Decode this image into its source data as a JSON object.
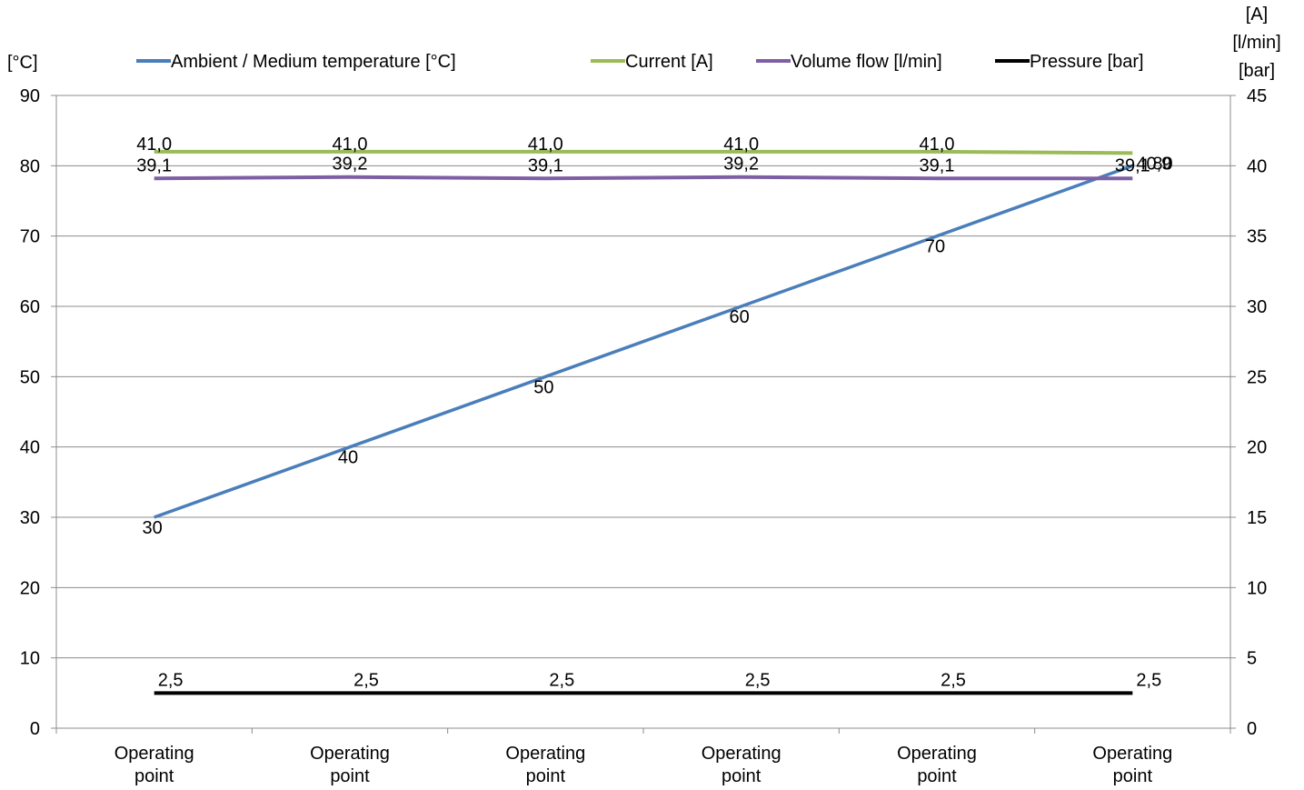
{
  "chart_data": {
    "type": "line",
    "categories": [
      "Operating point",
      "Operating point",
      "Operating point",
      "Operating point",
      "Operating point",
      "Operating point"
    ],
    "category_lines": [
      "Operating",
      "point"
    ],
    "left_axis": {
      "unit_label": "[°C]",
      "min": 0,
      "max": 90,
      "step": 10
    },
    "right_axis": {
      "unit_labels": [
        "[A]",
        "[l/min]",
        "[bar]"
      ],
      "min": 0,
      "max": 45,
      "step": 5
    },
    "grid": true,
    "legend_position": "top",
    "series": [
      {
        "name": "Ambient / Medium temperature [°C]",
        "axis": "left",
        "color": "#4a7ebb",
        "values": [
          30,
          40,
          50,
          60,
          70,
          80
        ],
        "labels": [
          "30",
          "40",
          "50",
          "60",
          "70",
          "80"
        ]
      },
      {
        "name": "Current [A]",
        "axis": "right",
        "color": "#9bbb59",
        "values": [
          41.0,
          41.0,
          41.0,
          41.0,
          41.0,
          40.9
        ],
        "labels": [
          "41,0",
          "41,0",
          "41,0",
          "41,0",
          "41,0",
          "40,9"
        ]
      },
      {
        "name": "Volume flow [l/min]",
        "axis": "right",
        "color": "#7f5fa3",
        "values": [
          39.1,
          39.2,
          39.1,
          39.2,
          39.1,
          39.1
        ],
        "labels": [
          "39,1",
          "39,2",
          "39,1",
          "39,2",
          "39,1",
          "39,1"
        ]
      },
      {
        "name": "Pressure [bar]",
        "axis": "right",
        "color": "#000000",
        "values": [
          2.5,
          2.5,
          2.5,
          2.5,
          2.5,
          2.5
        ],
        "labels": [
          "2,5",
          "2,5",
          "2,5",
          "2,5",
          "2,5",
          "2,5"
        ]
      }
    ]
  }
}
